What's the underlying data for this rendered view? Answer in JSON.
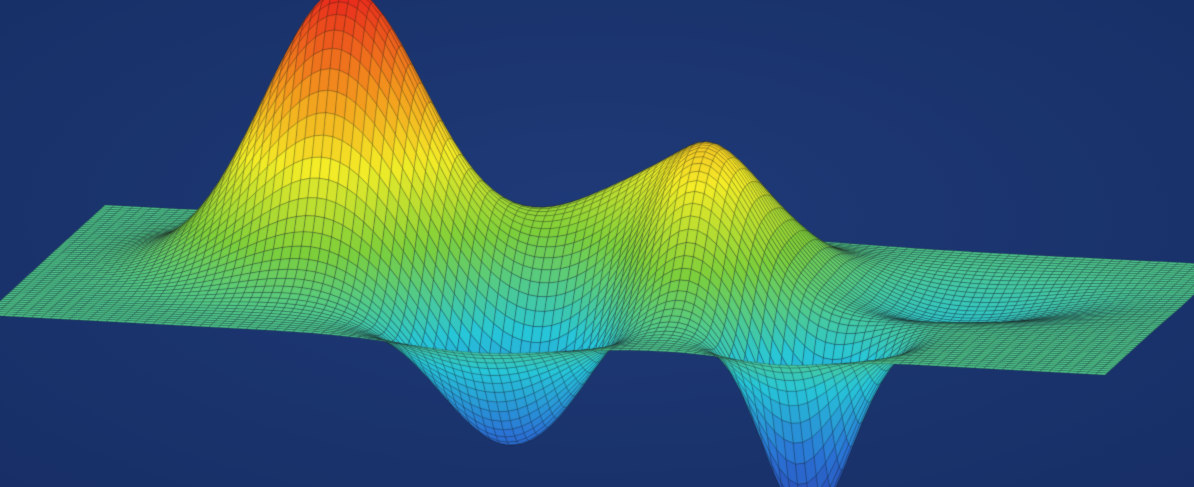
{
  "image": {
    "subject": "3d-surface-plot",
    "mesh": "wireframe-grid",
    "colormap": "jet",
    "colors": {
      "background": "#1f3a78",
      "background_edge": "#172f66",
      "grid_line": "#1a1a1a",
      "peak": "#e8221c",
      "high": "#f39a1d",
      "mid_high": "#f4ec27",
      "mid": "#7dcf3a",
      "mid_low": "#27c6d8",
      "low": "#2a74d6",
      "trough": "#2a3ca8"
    }
  }
}
